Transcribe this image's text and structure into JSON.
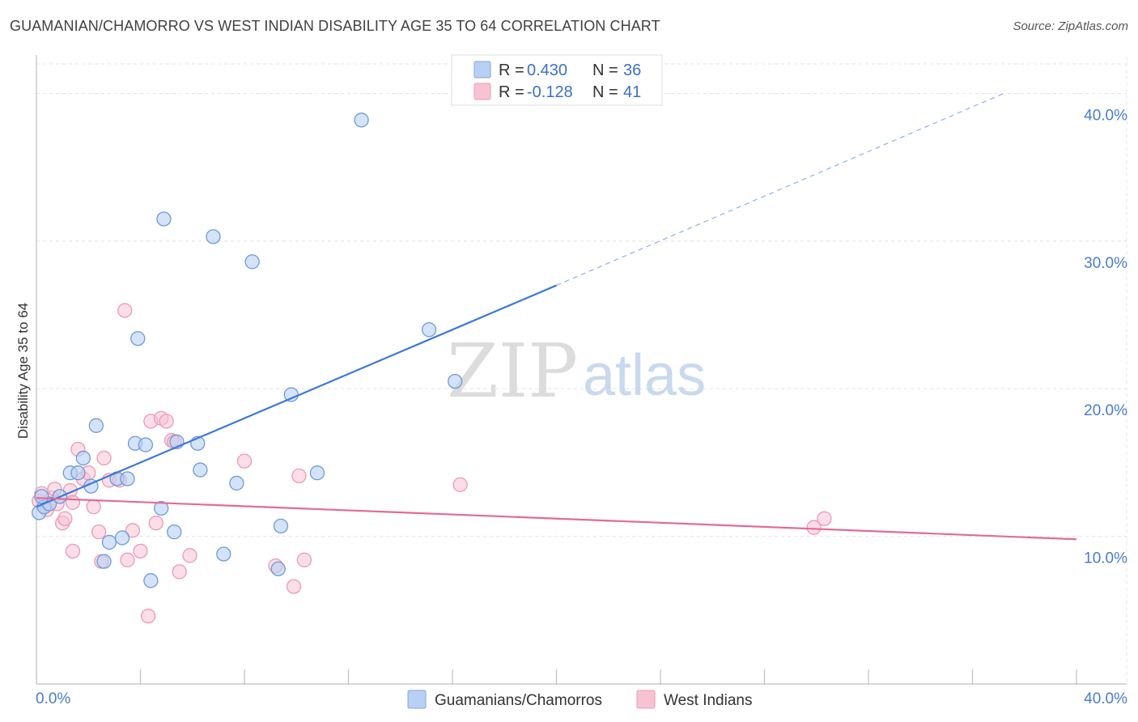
{
  "title": "GUAMANIAN/CHAMORRO VS WEST INDIAN DISABILITY AGE 35 TO 64 CORRELATION CHART",
  "source": "Source: ZipAtlas.com",
  "watermark": {
    "zip": "ZIP",
    "atlas": "atlas"
  },
  "colors": {
    "blue": "#3d78d8",
    "blue_fill": "#b8d0f3",
    "pink": "#e36b93",
    "pink_fill": "#f7c3d3"
  },
  "legend": {
    "rows": [
      {
        "r_label": "R =",
        "r_value": "0.430",
        "n_label": "N =",
        "n_value": "36"
      },
      {
        "r_label": "R =",
        "r_value": "-0.128",
        "n_label": "N =",
        "n_value": "41"
      }
    ]
  },
  "chart_data": {
    "type": "scatter",
    "title": "GUAMANIAN/CHAMORRO VS WEST INDIAN DISABILITY AGE 35 TO 64 CORRELATION CHART",
    "xlabel": "",
    "ylabel": "Disability Age 35 to 64",
    "xlim": [
      0,
      40
    ],
    "ylim": [
      0,
      42
    ],
    "x_tick_labels": [
      "0.0%",
      "40.0%"
    ],
    "y_ticks": [
      10,
      20,
      30,
      40
    ],
    "y_tick_labels": [
      "10.0%",
      "20.0%",
      "30.0%",
      "40.0%"
    ],
    "grid": true,
    "legend_position": "top-center",
    "series": [
      {
        "name": "Guamanians/Chamorros",
        "points": [
          [
            0.1,
            11.6
          ],
          [
            0.3,
            12.0
          ],
          [
            0.5,
            12.2
          ],
          [
            0.9,
            12.7
          ],
          [
            1.3,
            14.3
          ],
          [
            1.6,
            14.3
          ],
          [
            1.8,
            15.3
          ],
          [
            2.1,
            13.4
          ],
          [
            2.3,
            17.5
          ],
          [
            2.6,
            8.3
          ],
          [
            2.8,
            9.6
          ],
          [
            3.1,
            13.9
          ],
          [
            3.3,
            9.9
          ],
          [
            3.5,
            13.9
          ],
          [
            3.8,
            16.3
          ],
          [
            3.9,
            23.4
          ],
          [
            4.2,
            16.2
          ],
          [
            4.4,
            7.0
          ],
          [
            4.8,
            11.9
          ],
          [
            4.9,
            31.5
          ],
          [
            5.3,
            10.3
          ],
          [
            5.4,
            16.4
          ],
          [
            6.2,
            16.3
          ],
          [
            6.3,
            14.5
          ],
          [
            6.8,
            30.3
          ],
          [
            7.2,
            8.8
          ],
          [
            7.7,
            13.6
          ],
          [
            8.3,
            28.6
          ],
          [
            9.3,
            7.8
          ],
          [
            9.4,
            10.7
          ],
          [
            9.8,
            19.6
          ],
          [
            10.8,
            14.3
          ],
          [
            12.5,
            38.2
          ],
          [
            15.1,
            24.0
          ],
          [
            16.1,
            20.5
          ],
          [
            0.2,
            12.7
          ]
        ]
      },
      {
        "name": "West Indians",
        "points": [
          [
            0.1,
            12.4
          ],
          [
            0.2,
            12.9
          ],
          [
            0.4,
            11.8
          ],
          [
            0.6,
            12.6
          ],
          [
            0.7,
            13.2
          ],
          [
            0.8,
            12.2
          ],
          [
            1.0,
            10.9
          ],
          [
            1.1,
            11.2
          ],
          [
            1.3,
            13.1
          ],
          [
            1.4,
            12.3
          ],
          [
            1.6,
            15.9
          ],
          [
            1.8,
            13.9
          ],
          [
            2.0,
            14.3
          ],
          [
            2.2,
            12.0
          ],
          [
            2.4,
            10.3
          ],
          [
            2.5,
            8.3
          ],
          [
            2.6,
            15.3
          ],
          [
            2.8,
            13.8
          ],
          [
            3.2,
            13.8
          ],
          [
            3.4,
            25.3
          ],
          [
            3.5,
            8.4
          ],
          [
            3.7,
            10.4
          ],
          [
            4.0,
            9.0
          ],
          [
            4.3,
            4.6
          ],
          [
            4.4,
            17.8
          ],
          [
            4.6,
            10.9
          ],
          [
            4.8,
            18.0
          ],
          [
            5.0,
            17.8
          ],
          [
            5.2,
            16.5
          ],
          [
            5.5,
            7.6
          ],
          [
            5.9,
            8.7
          ],
          [
            1.4,
            9.0
          ],
          [
            8.0,
            15.1
          ],
          [
            9.2,
            8.0
          ],
          [
            9.9,
            6.6
          ],
          [
            10.1,
            14.1
          ],
          [
            10.3,
            8.4
          ],
          [
            16.3,
            13.5
          ],
          [
            29.9,
            10.6
          ],
          [
            30.3,
            11.2
          ],
          [
            5.3,
            16.4
          ]
        ]
      }
    ],
    "trendlines": [
      {
        "series": "Guamanians/Chamorros",
        "x0": 0,
        "y0": 12.0,
        "x1": 20,
        "y1": 27.0,
        "dashed_to_x": 37.2,
        "dashed_to_y": 40.0
      },
      {
        "series": "West Indians",
        "x0": 0,
        "y0": 12.6,
        "x1": 40,
        "y1": 9.8
      }
    ]
  },
  "bottom_legend": [
    {
      "label": "Guamanians/Chamorros"
    },
    {
      "label": "West Indians"
    }
  ]
}
